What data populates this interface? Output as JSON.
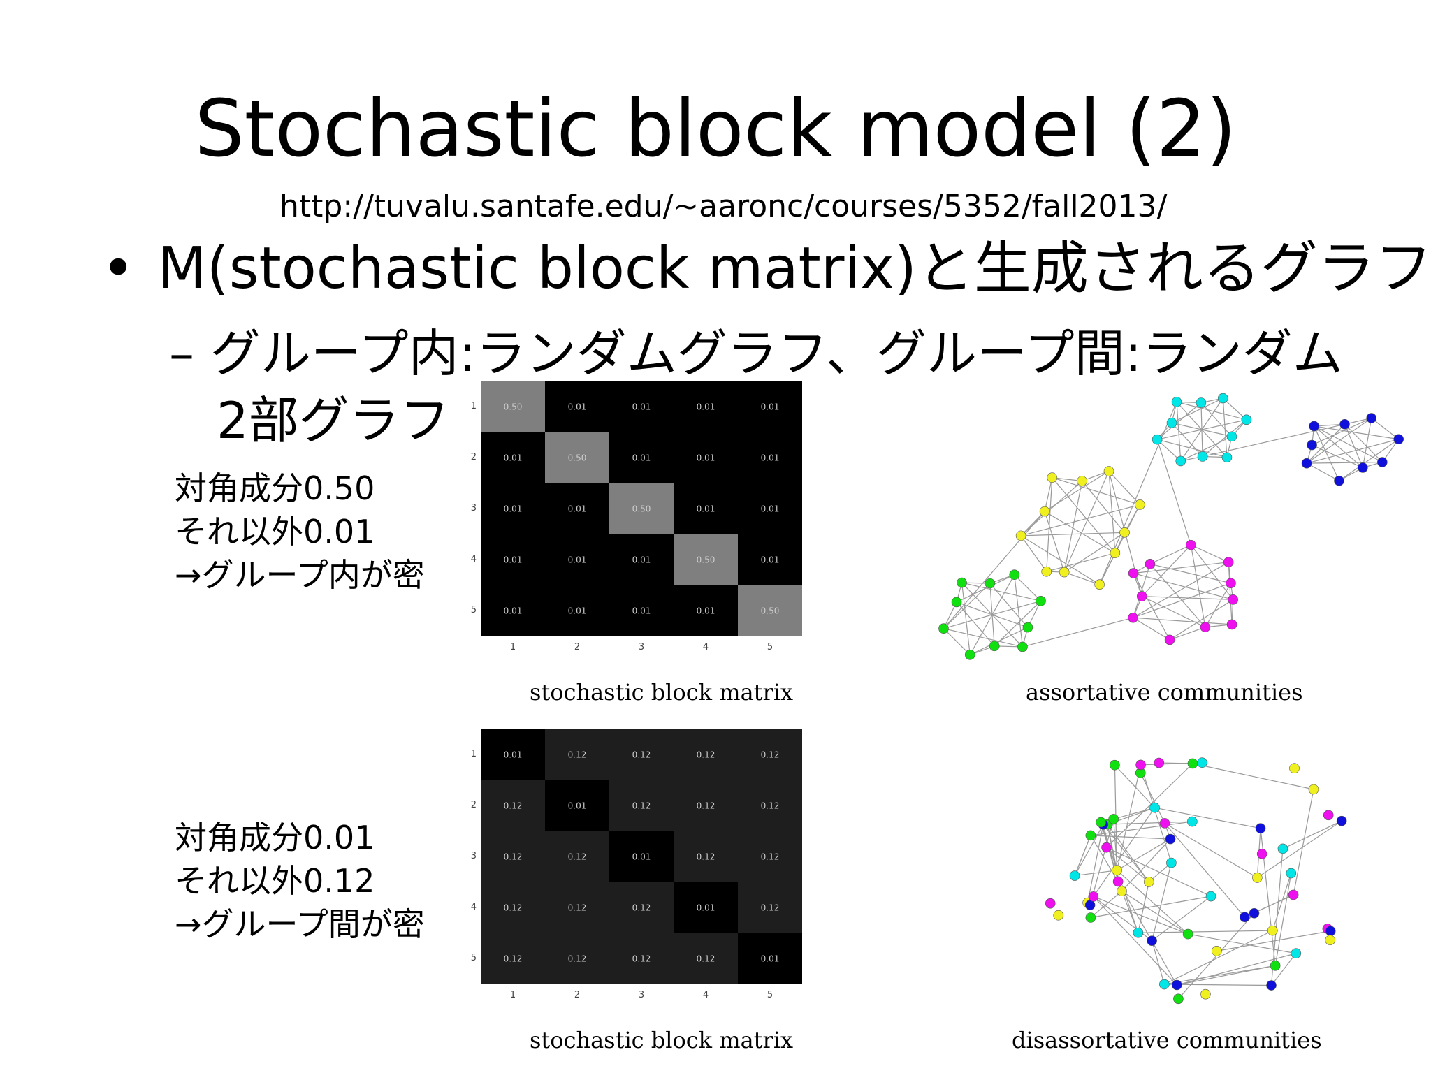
{
  "slide": {
    "title": "Stochastic block model (2)",
    "url": "http://tuvalu.santafe.edu/~aaronc/courses/5352/fall2013/",
    "bullet_symbol": "•",
    "bullet1": "M(stochastic block matrix)と生成されるグラフ",
    "bullet2_line1": "– グループ内:ランダムグラフ、グループ間:ランダム",
    "bullet2_line2": "2部グラフ",
    "note1": [
      "対角成分0.50",
      "それ以外0.01",
      "→グループ内が密"
    ],
    "note2": [
      "対角成分0.01",
      "それ以外0.12",
      "→グループ間が密"
    ]
  },
  "matrices": [
    {
      "caption": "stochastic block matrix",
      "row_labels": [
        "1",
        "2",
        "3",
        "4",
        "5"
      ],
      "col_labels": [
        "1",
        "2",
        "3",
        "4",
        "5"
      ],
      "values": [
        [
          "0.50",
          "0.01",
          "0.01",
          "0.01",
          "0.01"
        ],
        [
          "0.01",
          "0.50",
          "0.01",
          "0.01",
          "0.01"
        ],
        [
          "0.01",
          "0.01",
          "0.50",
          "0.01",
          "0.01"
        ],
        [
          "0.01",
          "0.01",
          "0.01",
          "0.50",
          "0.01"
        ],
        [
          "0.01",
          "0.01",
          "0.01",
          "0.01",
          "0.50"
        ]
      ],
      "colors": {
        "high": "#7f7f7f",
        "low": "#000000"
      }
    },
    {
      "caption": "stochastic block matrix",
      "row_labels": [
        "1",
        "2",
        "3",
        "4",
        "5"
      ],
      "col_labels": [
        "1",
        "2",
        "3",
        "4",
        "5"
      ],
      "values": [
        [
          "0.01",
          "0.12",
          "0.12",
          "0.12",
          "0.12"
        ],
        [
          "0.12",
          "0.01",
          "0.12",
          "0.12",
          "0.12"
        ],
        [
          "0.12",
          "0.12",
          "0.01",
          "0.12",
          "0.12"
        ],
        [
          "0.12",
          "0.12",
          "0.12",
          "0.01",
          "0.12"
        ],
        [
          "0.12",
          "0.12",
          "0.12",
          "0.12",
          "0.01"
        ]
      ],
      "colors": {
        "high": "#1e1e1e",
        "low": "#000000"
      }
    }
  ],
  "graphs": [
    {
      "caption": "assortative communities"
    },
    {
      "caption": "disassortative communities"
    }
  ],
  "community_colors": [
    "#00e5e5",
    "#1010dd",
    "#f0f020",
    "#ee10ee",
    "#10e010"
  ]
}
